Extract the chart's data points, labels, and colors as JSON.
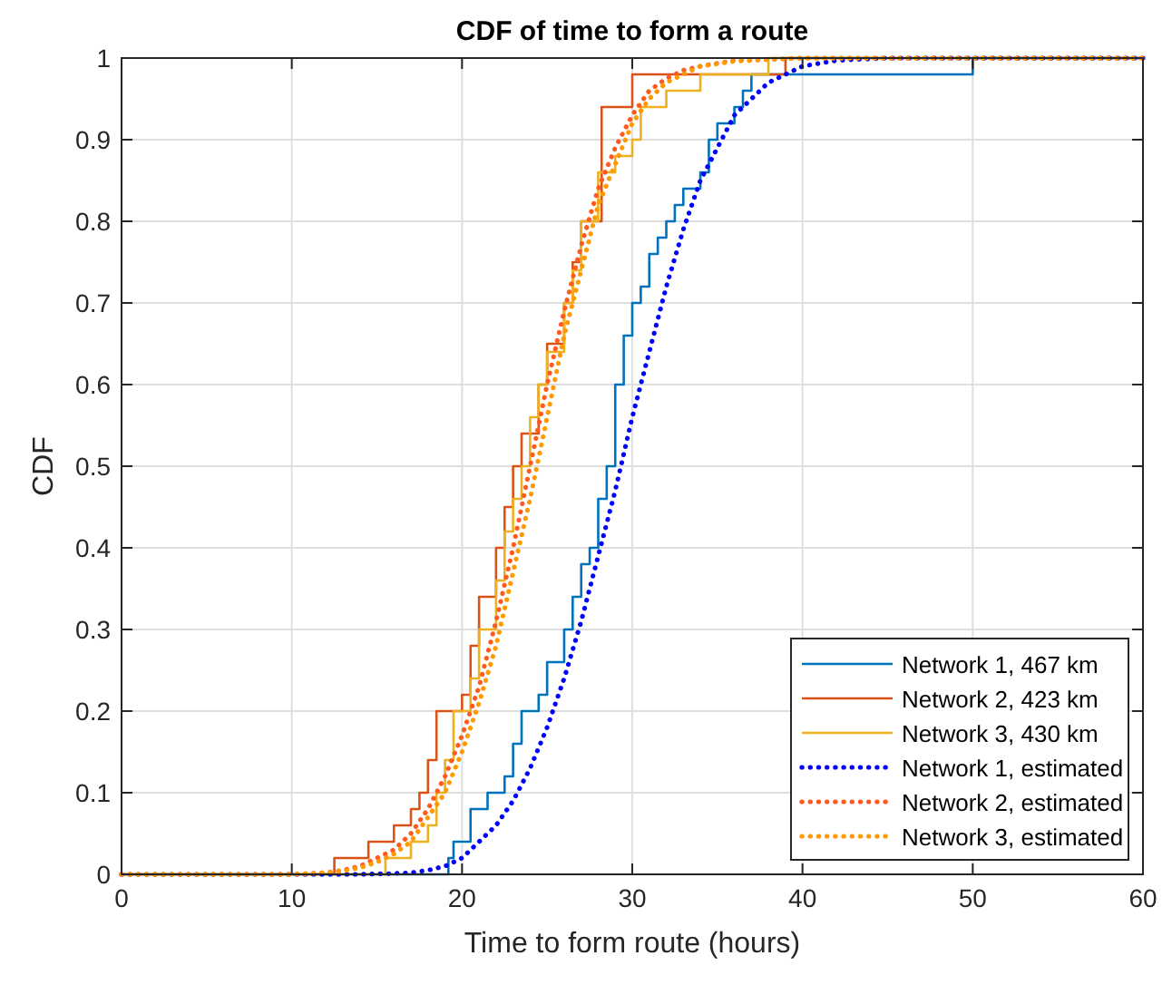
{
  "chart_data": {
    "type": "step",
    "title": "CDF of time to form a route",
    "xlabel": "Time to form route (hours)",
    "ylabel": "CDF",
    "xlim": [
      0,
      60
    ],
    "xticks": [
      0,
      10,
      20,
      30,
      40,
      50,
      60
    ],
    "ylim": [
      0,
      1
    ],
    "yticks": [
      0,
      0.1,
      0.2,
      0.3,
      0.4,
      0.5,
      0.6,
      0.7,
      0.8,
      0.9,
      1
    ],
    "grid": true,
    "legend": "bottom right",
    "series": [
      {
        "name": "Network 1, 467 km",
        "color": "#0072bd",
        "x": [
          0,
          19.2,
          19.5,
          20.5,
          21.5,
          22.5,
          23,
          23.5,
          24.5,
          25,
          26,
          26.5,
          27,
          27.5,
          28,
          28.5,
          29,
          29.5,
          30,
          30.5,
          31,
          31.5,
          32,
          32.5,
          33,
          34,
          34.5,
          35,
          36,
          36.5,
          37,
          50,
          60
        ],
        "values": [
          0,
          0.02,
          0.04,
          0.08,
          0.1,
          0.12,
          0.16,
          0.2,
          0.22,
          0.26,
          0.3,
          0.34,
          0.38,
          0.4,
          0.46,
          0.5,
          0.6,
          0.66,
          0.7,
          0.72,
          0.76,
          0.78,
          0.8,
          0.82,
          0.84,
          0.86,
          0.9,
          0.92,
          0.94,
          0.96,
          0.98,
          1,
          1
        ]
      },
      {
        "name": "Network 2, 423 km",
        "color": "#d95319",
        "x": [
          0,
          12.5,
          14.5,
          16,
          17,
          17.5,
          18,
          18.5,
          20,
          20.5,
          21,
          22,
          22.5,
          23,
          23.5,
          24.5,
          25,
          26,
          26.5,
          27,
          28.2,
          30,
          39,
          60
        ],
        "values": [
          0,
          0.02,
          0.04,
          0.06,
          0.08,
          0.1,
          0.14,
          0.2,
          0.22,
          0.28,
          0.34,
          0.4,
          0.45,
          0.5,
          0.54,
          0.6,
          0.65,
          0.7,
          0.75,
          0.8,
          0.94,
          0.98,
          1,
          1
        ]
      },
      {
        "name": "Network 3, 430 km",
        "color": "#edb120",
        "x": [
          0,
          15.5,
          17,
          18,
          18.5,
          19,
          19.5,
          20.5,
          21,
          22,
          22.5,
          23,
          23.5,
          24,
          24.5,
          25,
          26,
          26.5,
          27,
          28,
          29,
          30,
          30.5,
          32,
          34,
          38,
          60
        ],
        "values": [
          0,
          0.02,
          0.04,
          0.06,
          0.1,
          0.14,
          0.2,
          0.24,
          0.3,
          0.36,
          0.42,
          0.46,
          0.5,
          0.56,
          0.6,
          0.64,
          0.7,
          0.74,
          0.8,
          0.86,
          0.88,
          0.9,
          0.94,
          0.96,
          0.98,
          1,
          1
        ]
      },
      {
        "name": "Network 1, estimated",
        "type": "line",
        "line_style": "dotted",
        "color": "#0000ff",
        "x": [
          0,
          14,
          16,
          17,
          18,
          19,
          20,
          21,
          22,
          23,
          24,
          25,
          26,
          27,
          28,
          29,
          30,
          31,
          32,
          33,
          34,
          35,
          36,
          37,
          38,
          39,
          40,
          42,
          45,
          60
        ],
        "values": [
          0,
          0,
          0.001,
          0.002,
          0.005,
          0.01,
          0.02,
          0.04,
          0.06,
          0.09,
          0.13,
          0.18,
          0.24,
          0.31,
          0.39,
          0.47,
          0.56,
          0.64,
          0.72,
          0.79,
          0.85,
          0.89,
          0.93,
          0.95,
          0.97,
          0.98,
          0.99,
          0.997,
          1,
          1
        ]
      },
      {
        "name": "Network 2, estimated",
        "type": "line",
        "line_style": "dotted",
        "color": "#ff5a1f",
        "x": [
          0,
          10,
          12,
          13,
          14,
          15,
          16,
          17,
          18,
          19,
          20,
          21,
          22,
          23,
          24,
          25,
          26,
          27,
          28,
          29,
          30,
          31,
          32,
          33,
          34,
          36,
          40,
          60
        ],
        "values": [
          0,
          0,
          0.002,
          0.005,
          0.01,
          0.02,
          0.03,
          0.05,
          0.08,
          0.12,
          0.17,
          0.23,
          0.31,
          0.4,
          0.5,
          0.6,
          0.69,
          0.77,
          0.84,
          0.89,
          0.93,
          0.96,
          0.975,
          0.985,
          0.99,
          0.997,
          1,
          1
        ]
      },
      {
        "name": "Network 3, estimated",
        "type": "line",
        "line_style": "dotted",
        "color": "#ff9900",
        "x": [
          0,
          10,
          12,
          13,
          14,
          15,
          16,
          17,
          18,
          19,
          20,
          21,
          22,
          23,
          24,
          25,
          26,
          27,
          28,
          29,
          30,
          31,
          32,
          33,
          34,
          36,
          40,
          60
        ],
        "values": [
          0,
          0,
          0.002,
          0.004,
          0.008,
          0.015,
          0.025,
          0.04,
          0.07,
          0.1,
          0.15,
          0.21,
          0.28,
          0.37,
          0.46,
          0.56,
          0.66,
          0.74,
          0.82,
          0.87,
          0.92,
          0.95,
          0.97,
          0.98,
          0.99,
          0.996,
          1,
          1
        ]
      }
    ]
  }
}
